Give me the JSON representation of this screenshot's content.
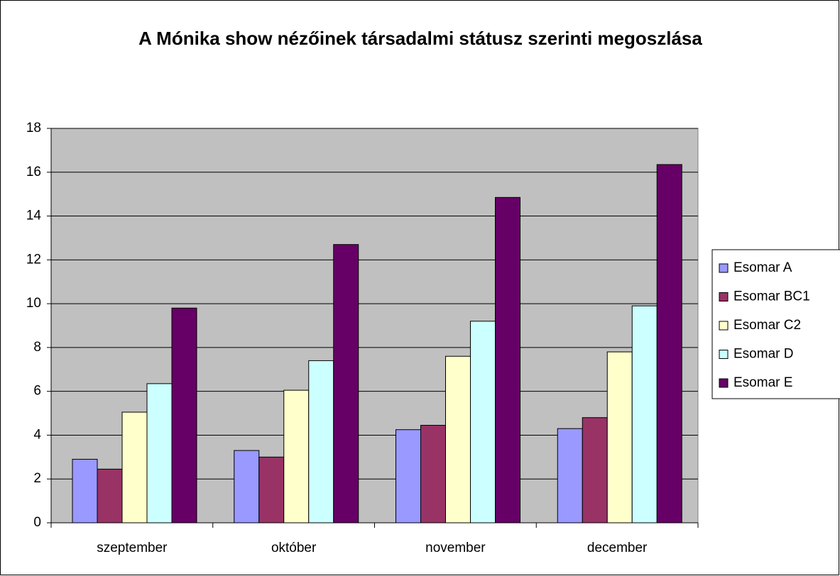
{
  "chart_data": {
    "type": "bar",
    "title": "A Mónika show nézőinek társadalmi státusz szerinti megoszlása",
    "categories": [
      "szeptember",
      "október",
      "november",
      "december"
    ],
    "series": [
      {
        "name": "Esomar A",
        "color": "#9999ff",
        "values": [
          2.9,
          3.3,
          4.25,
          4.3
        ]
      },
      {
        "name": "Esomar BC1",
        "color": "#993366",
        "values": [
          2.45,
          3.0,
          4.45,
          4.8
        ]
      },
      {
        "name": "Esomar C2",
        "color": "#ffffcc",
        "values": [
          5.05,
          6.05,
          7.6,
          7.8
        ]
      },
      {
        "name": "Esomar D",
        "color": "#ccffff",
        "values": [
          6.35,
          7.4,
          9.2,
          9.9
        ]
      },
      {
        "name": "Esomar E",
        "color": "#660066",
        "values": [
          9.8,
          12.7,
          14.85,
          16.35
        ]
      }
    ],
    "ylim": [
      0,
      18
    ],
    "yticks": [
      0,
      2,
      4,
      6,
      8,
      10,
      12,
      14,
      16,
      18
    ],
    "grid": true,
    "plot_background": "#c0c0c0",
    "legend": "right"
  }
}
